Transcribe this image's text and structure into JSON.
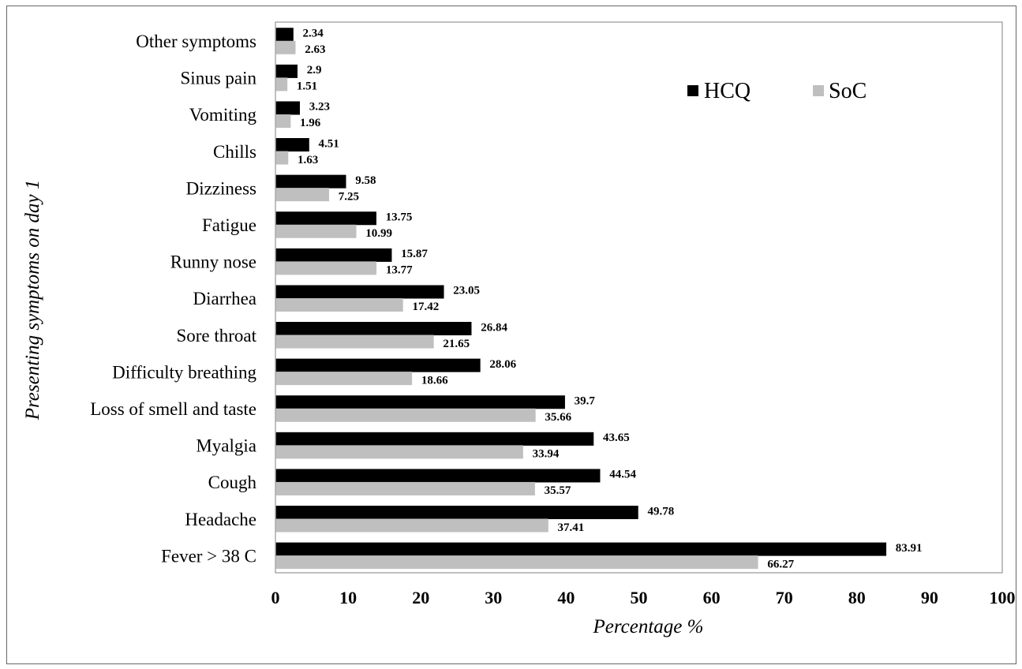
{
  "chart_data": {
    "type": "bar",
    "orientation": "horizontal",
    "categories": [
      "Other symptoms",
      "Sinus pain",
      "Vomiting",
      "Chills",
      "Dizziness",
      "Fatigue",
      "Runny nose",
      "Diarrhea",
      "Sore throat",
      "Difficulty breathing",
      "Loss of smell and taste",
      "Myalgia",
      "Cough",
      "Headache",
      "Fever > 38 C"
    ],
    "series": [
      {
        "name": "HCQ",
        "color": "#000000",
        "values": [
          2.34,
          2.9,
          3.23,
          4.51,
          9.58,
          13.75,
          15.87,
          23.05,
          26.84,
          28.06,
          39.7,
          43.65,
          44.54,
          49.78,
          83.91
        ]
      },
      {
        "name": "SoC",
        "color": "#bfbfbf",
        "values": [
          2.63,
          1.51,
          1.96,
          1.63,
          7.25,
          10.99,
          13.77,
          17.42,
          21.65,
          18.66,
          35.66,
          33.94,
          35.57,
          37.41,
          66.27
        ]
      }
    ],
    "data_labels": [
      [
        "2.34",
        "2.63"
      ],
      [
        "2.9",
        "1.51"
      ],
      [
        "3.23",
        "1.96"
      ],
      [
        "4.51",
        "1.63"
      ],
      [
        "9.58",
        "7.25"
      ],
      [
        "13.75",
        "10.99"
      ],
      [
        "15.87",
        "13.77"
      ],
      [
        "23.05",
        "17.42"
      ],
      [
        "26.84",
        "21.65"
      ],
      [
        "28.06",
        "18.66"
      ],
      [
        "39.7",
        "35.66"
      ],
      [
        "43.65",
        "33.94"
      ],
      [
        "44.54",
        "35.57"
      ],
      [
        "49.78",
        "37.41"
      ],
      [
        "83.91",
        "66.27"
      ]
    ],
    "xlabel": "Percentage %",
    "ylabel": "Presenting symptoms on day 1",
    "xlim": [
      0,
      100
    ],
    "xticks": [
      "0",
      "10",
      "20",
      "30",
      "40",
      "50",
      "60",
      "70",
      "80",
      "90",
      "100"
    ],
    "grid": false,
    "legend_position": "top-right"
  }
}
